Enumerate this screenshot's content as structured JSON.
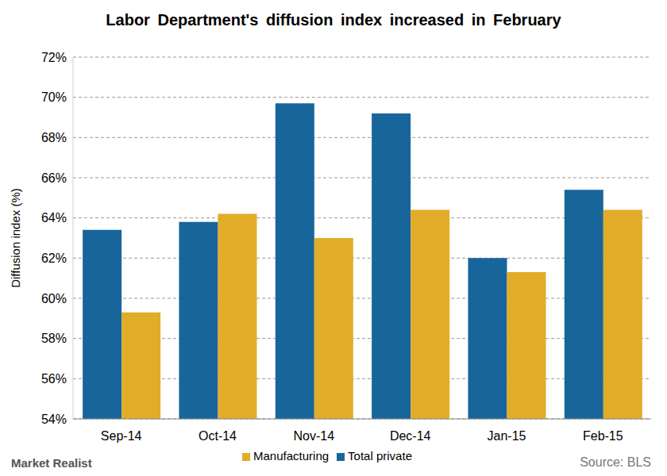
{
  "chart_data": {
    "type": "bar",
    "title": "Labor Department's diffusion index increased in February",
    "y_label": "Diffusion index (%)",
    "categories": [
      "Sep-14",
      "Oct-14",
      "Nov-14",
      "Dec-14",
      "Jan-15",
      "Feb-15"
    ],
    "series": [
      {
        "name": "Total private",
        "color": "#17659b",
        "values": [
          63.4,
          63.8,
          69.7,
          69.2,
          62.0,
          65.4
        ]
      },
      {
        "name": "Manufacturing",
        "color": "#e1ac28",
        "values": [
          59.3,
          64.2,
          63.0,
          64.4,
          61.3,
          64.4
        ]
      }
    ],
    "ylim": [
      54,
      72
    ],
    "yticks": [
      {
        "value": 54,
        "label": "54%"
      },
      {
        "value": 56,
        "label": "56%"
      },
      {
        "value": 58,
        "label": "58%"
      },
      {
        "value": 60,
        "label": "60%"
      },
      {
        "value": 62,
        "label": "62%"
      },
      {
        "value": 64,
        "label": "64%"
      },
      {
        "value": 66,
        "label": "66%"
      },
      {
        "value": 68,
        "label": "68%"
      },
      {
        "value": 70,
        "label": "70%"
      },
      {
        "value": 72,
        "label": "72%"
      }
    ],
    "grid": true,
    "legend": "bottom",
    "source": "Source: BLS",
    "watermark": "Market Realist"
  }
}
